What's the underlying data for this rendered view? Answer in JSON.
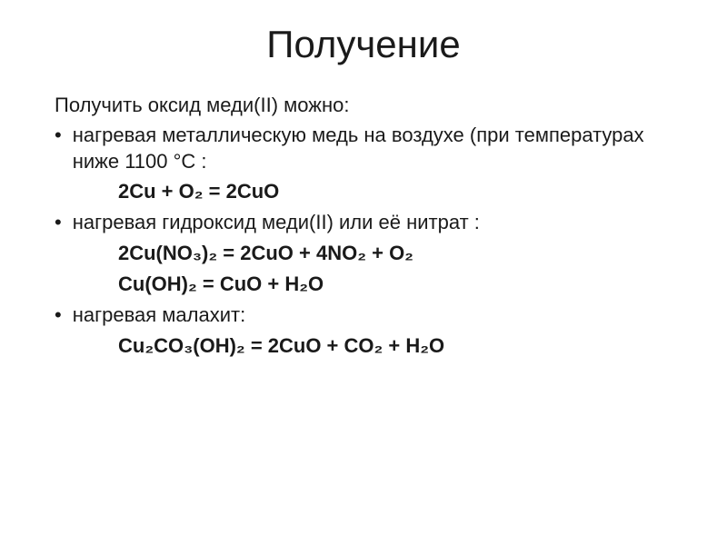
{
  "title": "Получение",
  "intro": "Получить оксид меди(II) можно:",
  "items": [
    {
      "text": "нагревая металлическую медь на воздухе (при температурах ниже 1100 °С :",
      "equations": [
        "2Cu + O₂ = 2CuO"
      ]
    },
    {
      "text": "нагревая гидроксид меди(II) или её нитрат :",
      "equations": [
        "2Cu(NO₃)₂ = 2CuO + 4NO₂ + O₂",
        "Cu(OH)₂ = CuO + H₂O"
      ]
    },
    {
      "text": "нагревая малахит:",
      "equations": [
        "Cu₂CO₃(OH)₂ = 2CuO + CO₂ + H₂O"
      ]
    }
  ],
  "colors": {
    "background": "#ffffff",
    "text": "#1a1a1a"
  },
  "typography": {
    "title_fontsize": 42,
    "body_fontsize": 22,
    "equation_weight": "bold",
    "font_family": "Arial"
  }
}
